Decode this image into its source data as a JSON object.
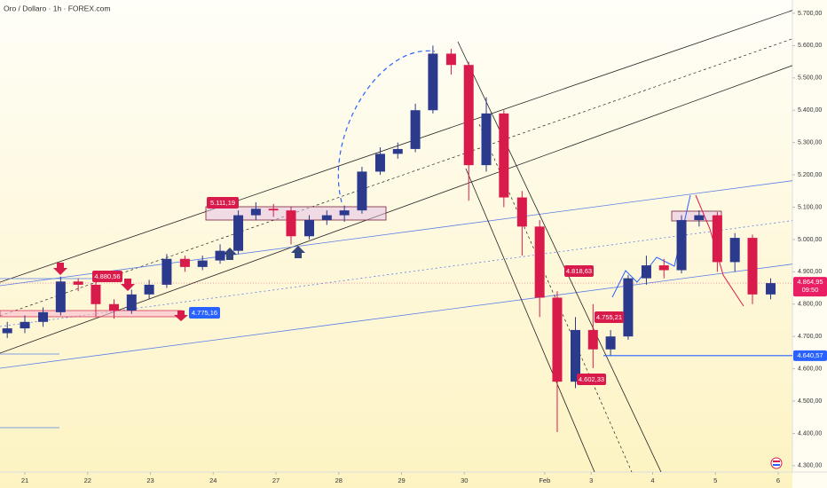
{
  "chart_data": {
    "type": "candlestick",
    "title": "Oro / Dollaro · 1h · FOREX.com",
    "x": [
      -0.28,
      0.0,
      0.29,
      0.57,
      0.85,
      1.13,
      1.42,
      1.7,
      1.98,
      2.26,
      2.55,
      2.83,
      3.11,
      3.4,
      3.68,
      3.96,
      4.24,
      4.53,
      4.81,
      5.09,
      5.37,
      5.66,
      5.94,
      6.22,
      6.5,
      6.79,
      7.07,
      7.35,
      7.63,
      7.92,
      8.2,
      8.48,
      8.77,
      9.05,
      9.33,
      9.61,
      9.9,
      10.18,
      10.46,
      10.74,
      11.03,
      11.31,
      11.59,
      11.88
    ],
    "open": [
      4710,
      4725,
      4745,
      4775,
      4870,
      4860,
      4800,
      4780,
      4830,
      4860,
      4940,
      4915,
      4935,
      4965,
      5075,
      5095,
      5090,
      5010,
      5060,
      5075,
      5090,
      5210,
      5265,
      5280,
      5400,
      5575,
      5540,
      5230,
      5390,
      5130,
      5040,
      4820,
      4560,
      4720,
      4660,
      4700,
      4880,
      4920,
      4905,
      5060,
      5075,
      4930,
      5005,
      4830
    ],
    "high": [
      4745,
      4765,
      4790,
      4885,
      4880,
      4870,
      4815,
      4845,
      4875,
      4955,
      4950,
      4950,
      4985,
      5090,
      5115,
      5110,
      5100,
      5075,
      5090,
      5105,
      5225,
      5285,
      5300,
      5420,
      5600,
      5590,
      5550,
      5440,
      5400,
      5150,
      5060,
      4840,
      4760,
      4800,
      4720,
      4890,
      4950,
      4940,
      5075,
      5090,
      5085,
      5020,
      5015,
      4880
    ],
    "low": [
      4695,
      4710,
      4730,
      4765,
      4840,
      4760,
      4755,
      4770,
      4815,
      4850,
      4900,
      4905,
      4925,
      4955,
      5060,
      5070,
      4985,
      5000,
      5045,
      5055,
      5080,
      5200,
      5250,
      5270,
      5390,
      5510,
      5120,
      5210,
      5100,
      4950,
      4760,
      4404,
      4540,
      4602,
      4640,
      4690,
      4860,
      4880,
      4895,
      5040,
      4900,
      4900,
      4800,
      4815
    ],
    "close": [
      4725,
      4745,
      4775,
      4870,
      4860,
      4800,
      4780,
      4830,
      4860,
      4940,
      4915,
      4935,
      4965,
      5075,
      5095,
      5090,
      5010,
      5060,
      5075,
      5090,
      5210,
      5265,
      5280,
      5400,
      5575,
      5540,
      5230,
      5390,
      5130,
      5040,
      4820,
      4560,
      4720,
      4660,
      4700,
      4880,
      4920,
      4905,
      5060,
      5075,
      4930,
      5005,
      4830,
      4865
    ],
    "up_color": "#2b3a8c",
    "down_color": "#d81b4a",
    "xlim": [
      -0.396,
      12.226
    ],
    "ylim": [
      4264,
      5741
    ],
    "xticks": [
      {
        "value": 0,
        "label": "21"
      },
      {
        "value": 1,
        "label": "22"
      },
      {
        "value": 2,
        "label": "23"
      },
      {
        "value": 3,
        "label": "24"
      },
      {
        "value": 4,
        "label": "27"
      },
      {
        "value": 5,
        "label": "28"
      },
      {
        "value": 6,
        "label": "29"
      },
      {
        "value": 7,
        "label": "30"
      },
      {
        "value": 8.28,
        "label": "Feb"
      },
      {
        "value": 9.02,
        "label": "3"
      },
      {
        "value": 10,
        "label": "4"
      },
      {
        "value": 11,
        "label": "5"
      },
      {
        "value": 12,
        "label": "6"
      }
    ],
    "yticks": [
      {
        "value": 4300,
        "label": "4.300,00"
      },
      {
        "value": 4400,
        "label": "4.400,00"
      },
      {
        "value": 4500,
        "label": "4.500,00"
      },
      {
        "value": 4600,
        "label": "4.600,00"
      },
      {
        "value": 4700,
        "label": "4.700,00"
      },
      {
        "value": 4800,
        "label": "4.800,00"
      },
      {
        "value": 4900,
        "label": "4.900,00"
      },
      {
        "value": 5000,
        "label": "5.000,00"
      },
      {
        "value": 5100,
        "label": "5.100,00"
      },
      {
        "value": 5200,
        "label": "5.200,00"
      },
      {
        "value": 5300,
        "label": "5.300,00"
      },
      {
        "value": 5400,
        "label": "5.400,00"
      },
      {
        "value": 5500,
        "label": "5.500,00"
      },
      {
        "value": 5600,
        "label": "5.600,00"
      },
      {
        "value": 5700,
        "label": "5.700,00"
      }
    ],
    "current_price": {
      "value": 4864.95,
      "label": "4.864,95",
      "color": "#e91e63"
    },
    "countdown": "09:50",
    "support_line": {
      "value": 4640.57,
      "label": "4.640,57",
      "color": "#2962ff"
    },
    "annotations": [
      "4.880,56",
      "4.775,16",
      "5.111,19",
      "4.818,63",
      "4.755,21",
      "4.602,33"
    ]
  }
}
